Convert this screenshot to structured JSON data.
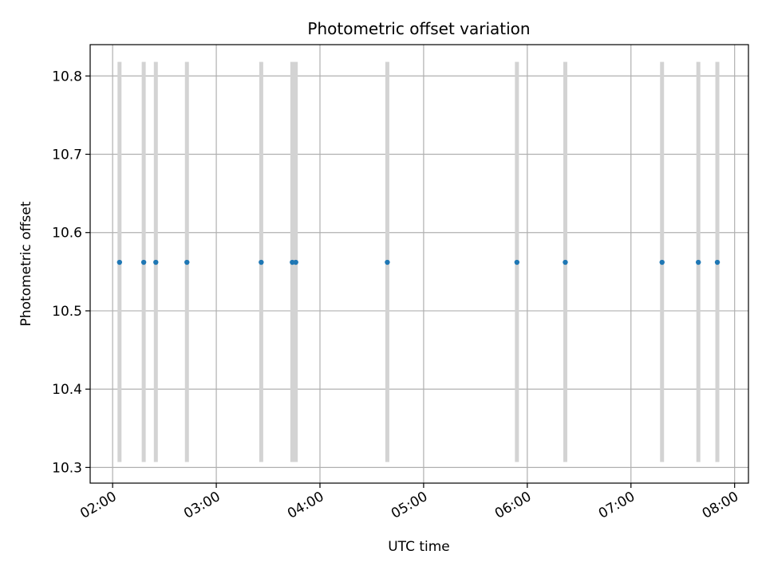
{
  "chart_data": {
    "type": "scatter",
    "title": "Photometric offset variation",
    "xlabel": "UTC time",
    "ylabel": "Photometric offset",
    "x_tick_labels": [
      "02:00",
      "03:00",
      "04:00",
      "05:00",
      "06:00",
      "07:00",
      "08:00"
    ],
    "y_tick_labels": [
      "10.3",
      "10.4",
      "10.5",
      "10.6",
      "10.7",
      "10.8"
    ],
    "xlim": [
      "01:47",
      "08:08"
    ],
    "ylim": [
      10.28,
      10.84
    ],
    "grid": true,
    "series": [
      {
        "color": "#1f77b4",
        "x": [
          "02:04",
          "02:18",
          "02:25",
          "02:43",
          "03:26",
          "03:44",
          "03:46",
          "04:39",
          "05:54",
          "06:22",
          "07:18",
          "07:39",
          "07:50"
        ],
        "y": [
          10.562,
          10.562,
          10.562,
          10.562,
          10.562,
          10.562,
          10.562,
          10.562,
          10.562,
          10.562,
          10.562,
          10.562,
          10.562
        ]
      }
    ],
    "vlines": {
      "color": "#d3d3d3",
      "ymin": 10.307,
      "ymax": 10.818,
      "x": [
        "02:04",
        "02:18",
        "02:25",
        "02:43",
        "03:26",
        "03:44",
        "03:46",
        "04:39",
        "05:54",
        "06:22",
        "07:18",
        "07:39",
        "07:50"
      ]
    }
  }
}
